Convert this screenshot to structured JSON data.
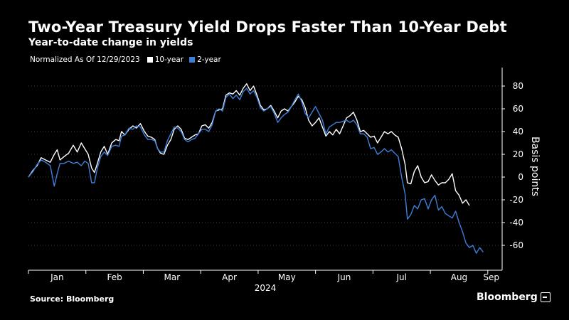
{
  "header": {
    "title": "Two-Year Treasury Yield Drops Faster Than 10-Year Debt",
    "subtitle": "Year-to-date change in yields"
  },
  "legend": {
    "note": "Normalized As Of 12/29/2023",
    "items": [
      {
        "label": "10-year",
        "color": "#ffffff"
      },
      {
        "label": "2-year",
        "color": "#3d7fd9"
      }
    ]
  },
  "footer": {
    "source": "Source: Bloomberg",
    "brand": "Bloomberg"
  },
  "chart_data": {
    "type": "line",
    "ylabel": "Basis points",
    "ylim": [
      -70,
      90
    ],
    "xlim": [
      0,
      8.25
    ],
    "yticks": [
      80,
      60,
      40,
      20,
      0,
      -20,
      -40,
      -60
    ],
    "month_labels": [
      "Jan",
      "Feb",
      "Mar",
      "Apr",
      "May",
      "Jun",
      "Jul",
      "Aug",
      "Sep"
    ],
    "year_label": "2024",
    "grid": "horizontal dotted",
    "legend_position": "top-left",
    "series": [
      {
        "name": "10-year",
        "color": "#ffffff",
        "points": [
          [
            0.0,
            0
          ],
          [
            0.08,
            6
          ],
          [
            0.15,
            10
          ],
          [
            0.22,
            17
          ],
          [
            0.3,
            15
          ],
          [
            0.38,
            13
          ],
          [
            0.45,
            20
          ],
          [
            0.5,
            24
          ],
          [
            0.55,
            15
          ],
          [
            0.62,
            18
          ],
          [
            0.7,
            21
          ],
          [
            0.78,
            28
          ],
          [
            0.85,
            22
          ],
          [
            0.92,
            30
          ],
          [
            0.98,
            25
          ],
          [
            1.04,
            20
          ],
          [
            1.1,
            8
          ],
          [
            1.15,
            4
          ],
          [
            1.2,
            12
          ],
          [
            1.26,
            22
          ],
          [
            1.32,
            27
          ],
          [
            1.38,
            20
          ],
          [
            1.45,
            30
          ],
          [
            1.52,
            33
          ],
          [
            1.58,
            32
          ],
          [
            1.62,
            40
          ],
          [
            1.68,
            37
          ],
          [
            1.75,
            42
          ],
          [
            1.82,
            45
          ],
          [
            1.88,
            43
          ],
          [
            1.95,
            47
          ],
          [
            2.02,
            40
          ],
          [
            2.08,
            36
          ],
          [
            2.14,
            35
          ],
          [
            2.2,
            33
          ],
          [
            2.25,
            25
          ],
          [
            2.3,
            21
          ],
          [
            2.36,
            20
          ],
          [
            2.42,
            28
          ],
          [
            2.48,
            33
          ],
          [
            2.54,
            42
          ],
          [
            2.6,
            45
          ],
          [
            2.66,
            42
          ],
          [
            2.72,
            34
          ],
          [
            2.78,
            33
          ],
          [
            2.84,
            35
          ],
          [
            2.9,
            37
          ],
          [
            2.96,
            38
          ],
          [
            3.02,
            45
          ],
          [
            3.08,
            46
          ],
          [
            3.14,
            43
          ],
          [
            3.2,
            48
          ],
          [
            3.26,
            58
          ],
          [
            3.32,
            59
          ],
          [
            3.38,
            60
          ],
          [
            3.44,
            72
          ],
          [
            3.5,
            74
          ],
          [
            3.56,
            73
          ],
          [
            3.62,
            76
          ],
          [
            3.68,
            72
          ],
          [
            3.74,
            78
          ],
          [
            3.8,
            82
          ],
          [
            3.86,
            76
          ],
          [
            3.92,
            80
          ],
          [
            3.98,
            72
          ],
          [
            4.04,
            63
          ],
          [
            4.1,
            59
          ],
          [
            4.16,
            60
          ],
          [
            4.22,
            63
          ],
          [
            4.28,
            58
          ],
          [
            4.34,
            52
          ],
          [
            4.4,
            58
          ],
          [
            4.46,
            60
          ],
          [
            4.52,
            58
          ],
          [
            4.58,
            62
          ],
          [
            4.64,
            66
          ],
          [
            4.7,
            71
          ],
          [
            4.76,
            68
          ],
          [
            4.82,
            61
          ],
          [
            4.88,
            50
          ],
          [
            4.94,
            45
          ],
          [
            5.0,
            48
          ],
          [
            5.06,
            52
          ],
          [
            5.12,
            44
          ],
          [
            5.18,
            36
          ],
          [
            5.24,
            40
          ],
          [
            5.3,
            37
          ],
          [
            5.36,
            42
          ],
          [
            5.42,
            38
          ],
          [
            5.48,
            45
          ],
          [
            5.54,
            52
          ],
          [
            5.6,
            54
          ],
          [
            5.66,
            57
          ],
          [
            5.72,
            50
          ],
          [
            5.78,
            40
          ],
          [
            5.84,
            41
          ],
          [
            5.9,
            38
          ],
          [
            5.96,
            35
          ],
          [
            6.02,
            36
          ],
          [
            6.08,
            30
          ],
          [
            6.14,
            35
          ],
          [
            6.2,
            40
          ],
          [
            6.26,
            38
          ],
          [
            6.32,
            40
          ],
          [
            6.38,
            37
          ],
          [
            6.44,
            35
          ],
          [
            6.5,
            25
          ],
          [
            6.56,
            11
          ],
          [
            6.6,
            -5
          ],
          [
            6.66,
            -6
          ],
          [
            6.72,
            5
          ],
          [
            6.78,
            10
          ],
          [
            6.84,
            0
          ],
          [
            6.9,
            -5
          ],
          [
            6.96,
            -4
          ],
          [
            7.02,
            2
          ],
          [
            7.08,
            -3
          ],
          [
            7.14,
            -7
          ],
          [
            7.2,
            -5
          ],
          [
            7.26,
            -5
          ],
          [
            7.32,
            -2
          ],
          [
            7.38,
            3
          ],
          [
            7.44,
            -12
          ],
          [
            7.5,
            -16
          ],
          [
            7.56,
            -23
          ],
          [
            7.62,
            -20
          ],
          [
            7.68,
            -25
          ]
        ]
      },
      {
        "name": "2-year",
        "color": "#3d7fd9",
        "points": [
          [
            0.0,
            0
          ],
          [
            0.08,
            5
          ],
          [
            0.15,
            11
          ],
          [
            0.22,
            15
          ],
          [
            0.3,
            13
          ],
          [
            0.38,
            10
          ],
          [
            0.45,
            -8
          ],
          [
            0.5,
            3
          ],
          [
            0.55,
            12
          ],
          [
            0.62,
            12
          ],
          [
            0.7,
            14
          ],
          [
            0.78,
            12
          ],
          [
            0.85,
            13
          ],
          [
            0.92,
            10
          ],
          [
            0.98,
            14
          ],
          [
            1.04,
            12
          ],
          [
            1.1,
            -5
          ],
          [
            1.15,
            -5
          ],
          [
            1.2,
            8
          ],
          [
            1.26,
            18
          ],
          [
            1.32,
            22
          ],
          [
            1.38,
            19
          ],
          [
            1.45,
            27
          ],
          [
            1.52,
            28
          ],
          [
            1.58,
            27
          ],
          [
            1.62,
            36
          ],
          [
            1.68,
            37
          ],
          [
            1.75,
            43
          ],
          [
            1.82,
            42
          ],
          [
            1.88,
            45
          ],
          [
            1.95,
            44
          ],
          [
            2.02,
            37
          ],
          [
            2.08,
            33
          ],
          [
            2.14,
            33
          ],
          [
            2.2,
            32
          ],
          [
            2.25,
            25
          ],
          [
            2.3,
            22
          ],
          [
            2.36,
            22
          ],
          [
            2.42,
            32
          ],
          [
            2.48,
            38
          ],
          [
            2.54,
            44
          ],
          [
            2.6,
            43
          ],
          [
            2.66,
            40
          ],
          [
            2.72,
            33
          ],
          [
            2.78,
            31
          ],
          [
            2.84,
            33
          ],
          [
            2.9,
            34
          ],
          [
            2.96,
            38
          ],
          [
            3.02,
            42
          ],
          [
            3.08,
            42
          ],
          [
            3.14,
            40
          ],
          [
            3.2,
            46
          ],
          [
            3.26,
            58
          ],
          [
            3.32,
            60
          ],
          [
            3.38,
            58
          ],
          [
            3.44,
            70
          ],
          [
            3.5,
            73
          ],
          [
            3.56,
            69
          ],
          [
            3.62,
            72
          ],
          [
            3.68,
            68
          ],
          [
            3.74,
            75
          ],
          [
            3.8,
            78
          ],
          [
            3.86,
            73
          ],
          [
            3.92,
            76
          ],
          [
            3.98,
            70
          ],
          [
            4.04,
            61
          ],
          [
            4.1,
            58
          ],
          [
            4.16,
            60
          ],
          [
            4.22,
            62
          ],
          [
            4.28,
            56
          ],
          [
            4.34,
            48
          ],
          [
            4.4,
            52
          ],
          [
            4.46,
            55
          ],
          [
            4.52,
            57
          ],
          [
            4.58,
            62
          ],
          [
            4.64,
            68
          ],
          [
            4.7,
            73
          ],
          [
            4.76,
            66
          ],
          [
            4.82,
            56
          ],
          [
            4.88,
            52
          ],
          [
            4.94,
            57
          ],
          [
            5.0,
            62
          ],
          [
            5.06,
            56
          ],
          [
            5.12,
            50
          ],
          [
            5.18,
            38
          ],
          [
            5.24,
            44
          ],
          [
            5.3,
            46
          ],
          [
            5.36,
            48
          ],
          [
            5.42,
            48
          ],
          [
            5.48,
            49
          ],
          [
            5.54,
            50
          ],
          [
            5.6,
            48
          ],
          [
            5.66,
            50
          ],
          [
            5.72,
            46
          ],
          [
            5.78,
            38
          ],
          [
            5.84,
            38
          ],
          [
            5.9,
            35
          ],
          [
            5.96,
            25
          ],
          [
            6.02,
            26
          ],
          [
            6.08,
            20
          ],
          [
            6.14,
            22
          ],
          [
            6.2,
            25
          ],
          [
            6.26,
            22
          ],
          [
            6.32,
            24
          ],
          [
            6.38,
            21
          ],
          [
            6.44,
            18
          ],
          [
            6.5,
            0
          ],
          [
            6.56,
            -15
          ],
          [
            6.6,
            -37
          ],
          [
            6.66,
            -33
          ],
          [
            6.72,
            -25
          ],
          [
            6.78,
            -28
          ],
          [
            6.84,
            -20
          ],
          [
            6.9,
            -19
          ],
          [
            6.96,
            -28
          ],
          [
            7.02,
            -20
          ],
          [
            7.08,
            -16
          ],
          [
            7.14,
            -29
          ],
          [
            7.2,
            -26
          ],
          [
            7.26,
            -32
          ],
          [
            7.32,
            -34
          ],
          [
            7.38,
            -36
          ],
          [
            7.44,
            -30
          ],
          [
            7.5,
            -40
          ],
          [
            7.56,
            -48
          ],
          [
            7.62,
            -58
          ],
          [
            7.68,
            -62
          ],
          [
            7.74,
            -60
          ],
          [
            7.8,
            -67
          ],
          [
            7.86,
            -62
          ],
          [
            7.92,
            -66
          ]
        ]
      }
    ]
  }
}
